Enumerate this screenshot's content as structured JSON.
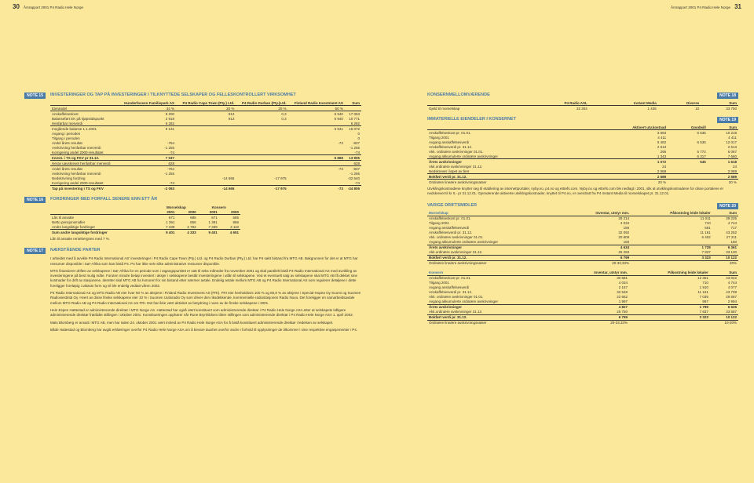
{
  "left_page": {
    "page_num": "30",
    "header_text": "Årsrapport 2001 P4 Radio Hele Norge",
    "note15": {
      "tag": "NOTE 15",
      "heading": "INVESTERINGER OG TAP PÅ INVESTERINGER I TILKNYTTEDE SELSKAPER OG FELLESKONTROLLERT VIRKSOMHET",
      "cols": [
        "",
        "Hunderfossen Familiepark AS",
        "P4 Radio Cape Town (Pty.) Ltd.",
        "P4 Radio Durban (Pty.)Ltd.",
        "Finland Radio Investment AS",
        "Sum"
      ],
      "rows": [
        [
          "Eierandel",
          "34 %",
          "20 %",
          "20 %",
          "50 %",
          ""
        ],
        [
          "Anskaffelseskost",
          "9 200",
          "913",
          "0,3",
          "6 940",
          "17 053"
        ],
        [
          "Balanseført EK på kjøpstidspunkt",
          "2 918",
          "913",
          "0,3",
          "6 940",
          "10 771"
        ],
        [
          "Henførbar merverdi",
          "6 282",
          "",
          "",
          "",
          "6 282"
        ],
        [
          "Inngående balanse 1.1.2001",
          "9 131",
          "",
          "",
          "6 941",
          "16 072"
        ],
        [
          "Avgang i perioden",
          "",
          "",
          "",
          "",
          "0"
        ],
        [
          "Tilgang i perioden",
          "",
          "",
          "",
          "",
          "0"
        ],
        [
          "Andel årets resultat",
          "-764",
          "",
          "",
          "-73",
          "-837"
        ],
        [
          "Avskrivning henførbar merverdi",
          "-1 255",
          "",
          "",
          "",
          "-1 255"
        ],
        [
          "Korrigering andel 2000-resultatet",
          "-74",
          "",
          "",
          "",
          "-74"
        ],
        [
          "Invest. i TS og FKV pr 31.12.",
          "7 037",
          "",
          "",
          "6 868",
          "13 905"
        ],
        [
          "Herav uavskrevet henførbar merverdi",
          "628",
          "",
          "",
          "",
          "628"
        ],
        [
          "Andel årets resultat",
          "-764",
          "",
          "",
          "-73",
          "-837"
        ],
        [
          "Avskrivning henførbar merverdi",
          "-1 255",
          "",
          "",
          "",
          "-1 255"
        ],
        [
          "Nedskrivning fordring",
          "",
          "-14 665",
          "-17 975",
          "",
          "-32 640"
        ],
        [
          "Korrigering andel 2000-resultatet",
          "-74",
          "",
          "",
          "",
          "-74"
        ],
        [
          "Tap på investering i TS og FKV",
          "-2 093",
          "-14 665",
          "-17 975",
          "-73",
          "-34 806"
        ]
      ]
    },
    "note16": {
      "tag": "NOTE 16",
      "heading": "FORDRINGER MED FORFALL SENERE ENN ETT ÅR",
      "super_cols": [
        "",
        "Morselskap",
        "Konsern"
      ],
      "cols": [
        "",
        "2001",
        "2000",
        "2001",
        "2000"
      ],
      "rows": [
        [
          "Lån til ansatte",
          "671",
          "685",
          "671",
          "685"
        ],
        [
          "Netto pensjonsmidler",
          "1 391",
          "856",
          "1 391",
          "856"
        ],
        [
          "Andre langsiktige fordringer",
          "7 339",
          "2 792",
          "7 339",
          "3 110"
        ],
        [
          "Sum andre langsiktige fordringer",
          "9 401",
          "4 333",
          "9 401",
          "4 651"
        ]
      ],
      "footnote": "Lån til ansatte rentebergnes med 7 %."
    },
    "note17": {
      "tag": "NOTE 17",
      "heading": "NÆRSTÅENDE PARTER",
      "para1": "I arbeidet med å avvikle P4 Radio International AS' investeringer i P4 Radio Cape Town (Pty.) Ltd. og P4 Radio Durban (Pty.) Ltd. har P4 søkt bistand fra MTG AB. Bakgrunnen for det er at MTG har ressurser disponible i Sør-Afrika som kan bistå P4. P4 har ikke selv slike administrative ressurser disponible.",
      "para2": "MTG finansierer driften av selskapene i Sør-Afrika for en periode som i utgangspunktet er satt til seks måneder fra november 2001 og skal parallelt bistå P4 Radio International AS med avvikling av investeringene på best mulig måte. Foruten mindre beløp investert i aksjer i selskapene består investeringene i utlån til selskapene. Ved et eventuelt salg av selskapene skal MTG AB få dekket sine kostnader for drift av stasjonene, deretter skal MTG AB ha honorert for sin bistand etter nærmer avtale. Endelig avtale mellom MTG AB og P4 Radio International AS som regulerer detaljene i dette foreligger foreløpig i utkasts form og vil ble endelig vedtatt våren 2002.",
      "para3": "P4 Radio International AS og MTG Radio AB eier hver 50 % av aksjene i Finland Radio Investment AS (FRI). FRI eier henholdsvis 100 % og 66,8 % av aksjene i Special-Hopea Oy Suomi og Suomen Radioviestintä Oy. Hvert av disse finske selskapene eier 10 % i Suomen Uutisradio Oy som driver den riksdekkende, kommersielle radiostasjonen Radio Nova. Det foreligger en samarbeidsavtale mellom MTG Radio AB og P4 Radio International AS om FRI. Det har ikke vært aktivitet av betydning i noen av de finske selskapene i 2001.",
      "para4": "Hein Espen Hattestad er administrerende direktør i MTG Norge AS. Hattestad har også vært konstituert som administrerende direktør i P4 Radio Hele Norge ASA etter at selskapets tidligere administrerende direktør fratrådte stillingen i oktober 2001. Konstitueringen opphører når Rune Brynhildsen tiltrer stillingen som administrerende direktør i P4 Radio Hele Norge ASA 1. april 2002.",
      "para5": "Mats Blomberg er ansatt i MTG AB, men har siden 24. oktober 2001 vært innleid av P4 Radio Hele Norge ASA for å bistå konstituert administrerende direktør i ledelsen av selskapet.",
      "para6": "Både Hattestad og Blomberg har avgitt erklæringer overfor P4 Radio Hele Norge ASA om å bevare taushet overfor andre i forhold til opplysninger de tilkommer i sine respektive engasjementer i P4."
    }
  },
  "right_page": {
    "page_num": "31",
    "header_text": "Årsrapport 2001 P4 Radio Hele Norge",
    "note18": {
      "tag": "NOTE 18",
      "heading": "KONSERNMELLOMVÆRENDE",
      "cols": [
        "",
        "P4 Radio ASL",
        "Instant Media",
        "Diverse",
        "Sum"
      ],
      "rows": [
        [
          "Gjeld til morselskap",
          "32 304",
          "1 436",
          "10",
          "33 750"
        ]
      ]
    },
    "note19": {
      "tag": "NOTE 19",
      "heading": "IMMATERIELLE EIENDELER I KONSERNET",
      "cols": [
        "",
        "Aktivert utv.kostnad",
        "Goodwill",
        "Sum"
      ],
      "rows": [
        [
          "Anskaffelseskost pr. 01.01.",
          "3 683",
          "6 535",
          "10 218"
        ],
        [
          "Tilgang 2001",
          "4 411",
          "",
          "4 411"
        ],
        [
          "Avgang anskaffelsesverdi",
          "5 482",
          "6 535",
          "12 017"
        ],
        [
          "Anskaffelsesverdi pr. 31.12.",
          "2 613",
          "",
          "2 613"
        ],
        [
          "Akk. ordinære avskrivninger 01.01.",
          "295",
          "5 772",
          "6 067"
        ],
        [
          "Avgang akkumulerte ordinære avskrivninger",
          "1 343",
          "6 317",
          "7 660"
        ],
        [
          "Årets avskrivninger",
          "1 072",
          "545",
          "1 618"
        ],
        [
          "Akk.ordinære avskrivninger 31.12.",
          "24",
          "",
          "24"
        ],
        [
          "Nedskrevet i løpet av året",
          "2 069",
          "",
          "2 069"
        ],
        [
          "Bokført verdi pr. 31.12.",
          "2 589",
          "",
          "2 589"
        ],
        [
          "Ordinære lineære avskrivningssatser",
          "20 %",
          "",
          "20 %"
        ]
      ],
      "footnote": "Utviklingskostnadene knytter seg til etablering av internettportaler, nyby.no, p4.no og ettrefs.com. Nyby.no og ettrefs.com ble nedlagt i 2001, slik at utviklingskostnadene for disse portalene er nedskrevet til kr 0,- pr 31.12.01. Gjenværende aktiverte utviklingskostnader, knyttet til P4.no, er overdratt fra P4 Instant Media til morselskapet pr. 31.12.01."
    },
    "note20": {
      "tag": "NOTE 20",
      "heading": "VARIGE DRIFTSMIDLER",
      "cols_a": [
        "Morselskap",
        "Inventar, utstyr mm.",
        "Påkostning leide lokaler",
        "Sum"
      ],
      "rows_a": [
        [
          "Anskaffelseskost pr. 01.01.",
          "28 214",
          "11 011",
          "39 225"
        ],
        [
          "Tilgang 2001",
          "4 034",
          "710",
          "4 744"
        ],
        [
          "Avgang anskaffelsesverdi",
          "156",
          "561",
          "717"
        ],
        [
          "Anskaffelsesverdi pr. 31.12.",
          "32 092",
          "11 161",
          "43 252"
        ],
        [
          "Akk. ordinære avskrivninger 01.01.",
          "20 809",
          "6 402",
          "27 211"
        ],
        [
          "Avgang akkumulerte ordinære avskrivninger",
          "150",
          "",
          "150"
        ],
        [
          "Årets avskrivninger",
          "4 634",
          "1 728",
          "6 361"
        ],
        [
          "Akk.ordinære avskrivninger 31.12.",
          "25 293",
          "7 837",
          "33 130"
        ],
        [
          "Bokført verdi pr. 31.12.",
          "6 799",
          "3 323",
          "10 122"
        ],
        [
          "Ordinære lineære avskrivningssatser",
          "20-33,33%",
          "",
          "20%"
        ]
      ],
      "cols_b": [
        "Konsern",
        "Inventar, utstyr mm.",
        "Påkostning leide lokaler",
        "Sum"
      ],
      "rows_b": [
        [
          "Anskaffelseskost pr. 01.01.",
          "30 681",
          "12 361",
          "43 042"
        ],
        [
          "Tilgang 2001",
          "4 034",
          "710",
          "4 744"
        ],
        [
          "Avgang anskaffelsesverdi",
          "2 167",
          "1 910",
          "4 077"
        ],
        [
          "Anskaffelsesverdi pr. 31.12.",
          "32 548",
          "11 161",
          "43 709"
        ],
        [
          "Akk. ordinære avskrivninger 01.01.",
          "22 652",
          "7 035",
          "29 687"
        ],
        [
          "Avgang akkumulerte ordinære avskrivninger",
          "1 997",
          "997",
          "2 994"
        ],
        [
          "Årets avskrivninger",
          "4 827",
          "1 799",
          "6 626"
        ],
        [
          "Akk.ordinære avskrivninger 31.12.",
          "25 750",
          "7 837",
          "33 587"
        ],
        [
          "Bokført verdi pr. 31.12.",
          "6 799",
          "3 323",
          "10 122"
        ],
        [
          "Ordinære lineære avskrivningssatser",
          "20-33,33%",
          "",
          "10-20%"
        ]
      ]
    }
  }
}
